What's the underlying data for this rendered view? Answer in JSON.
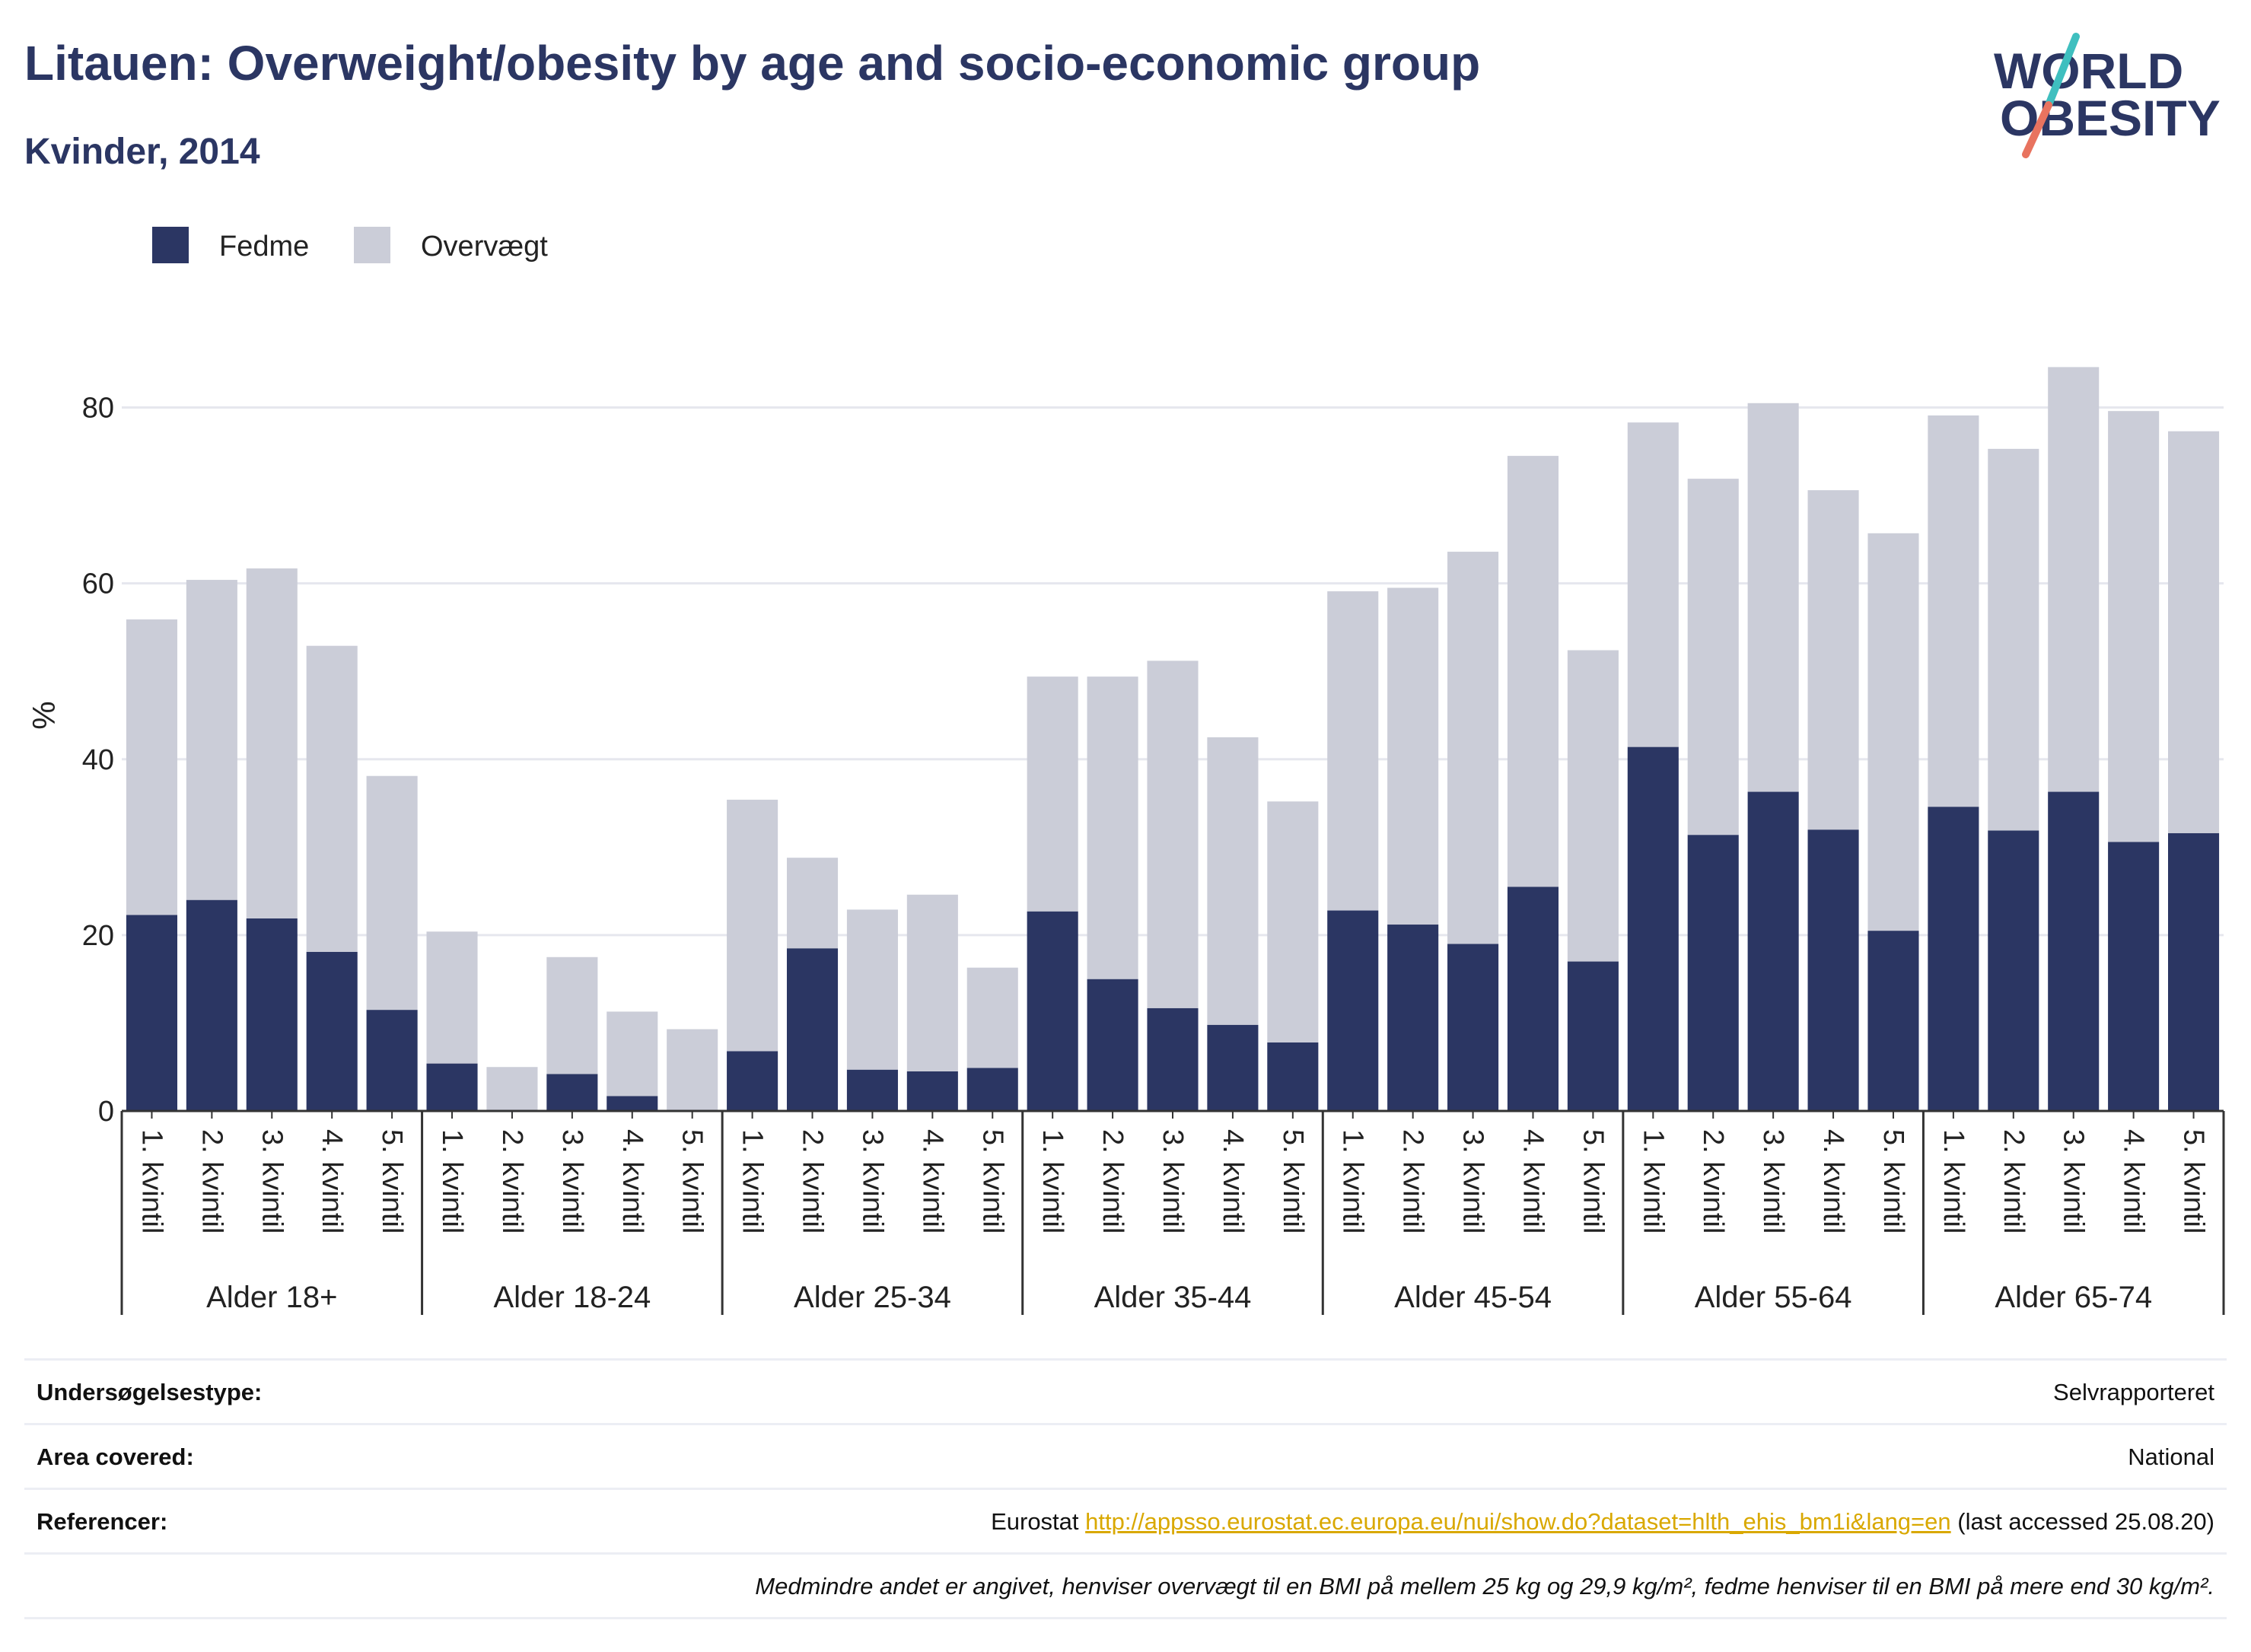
{
  "header": {
    "title": "Litauen: Overweight/obesity by age and socio-economic group",
    "subtitle": "Kvinder, 2014"
  },
  "logo": {
    "line1": "WORLD",
    "line2": "OBESITY"
  },
  "colors": {
    "text": "#2b3663",
    "fedme": "#2b3663",
    "overvaegt": "#cbcdd8",
    "grid": "#e6e7ee",
    "axis": "#333333",
    "link": "#d9a800",
    "logo_teal": "#3fbfbf",
    "logo_coral": "#e8735f"
  },
  "chart_data": {
    "type": "bar",
    "stacked": true,
    "ylabel": "%",
    "ylim": [
      0,
      90
    ],
    "yticks": [
      0,
      20,
      40,
      60,
      80
    ],
    "grid": true,
    "legend_position": "top-left",
    "groups": [
      "Alder 18+",
      "Alder 18-24",
      "Alder 25-34",
      "Alder 35-44",
      "Alder 45-54",
      "Alder 55-64",
      "Alder 65-74"
    ],
    "categories": [
      "1. kvintil",
      "2. kvintil",
      "3. kvintil",
      "4. kvintil",
      "5. kvintil"
    ],
    "series": [
      {
        "name": "Fedme",
        "color": "#2b3663",
        "values": [
          [
            22.3,
            24.0,
            21.9,
            18.1,
            11.5
          ],
          [
            5.4,
            0,
            4.2,
            1.7,
            0
          ],
          [
            6.8,
            18.5,
            4.7,
            4.5,
            4.9
          ],
          [
            22.7,
            15.0,
            11.7,
            9.8,
            7.8
          ],
          [
            22.8,
            21.2,
            19.0,
            25.5,
            17.0
          ],
          [
            41.4,
            31.4,
            36.3,
            32.0,
            20.5
          ],
          [
            34.6,
            31.9,
            36.3,
            30.6,
            31.6
          ]
        ]
      },
      {
        "name": "Overvægt",
        "color": "#cbcdd8",
        "values": [
          [
            33.6,
            36.4,
            39.8,
            34.8,
            26.6
          ],
          [
            15.0,
            5.0,
            13.3,
            9.6,
            9.3
          ],
          [
            28.6,
            10.3,
            18.2,
            20.1,
            11.4
          ],
          [
            26.7,
            34.4,
            39.5,
            32.7,
            27.4
          ],
          [
            36.3,
            38.3,
            44.6,
            49.0,
            35.4
          ],
          [
            36.9,
            40.5,
            44.2,
            38.6,
            45.2
          ],
          [
            44.5,
            43.4,
            48.3,
            49.0,
            45.7
          ]
        ]
      }
    ]
  },
  "footer": {
    "survey_type_label": "Undersøgelsestype:",
    "survey_type_value": "Selvrapporteret",
    "area_label": "Area covered:",
    "area_value": "National",
    "references_label": "Referencer:",
    "references_prefix": "Eurostat ",
    "references_link": "http://appsso.eurostat.ec.europa.eu/nui/show.do?dataset=hlth_ehis_bm1i&lang=en",
    "references_suffix": " (last accessed 25.08.20)",
    "note": "Medmindre andet er angivet, henviser overvægt til en BMI på mellem 25 kg og 29,9 kg/m², fedme henviser til en BMI på mere end 30 kg/m²."
  }
}
